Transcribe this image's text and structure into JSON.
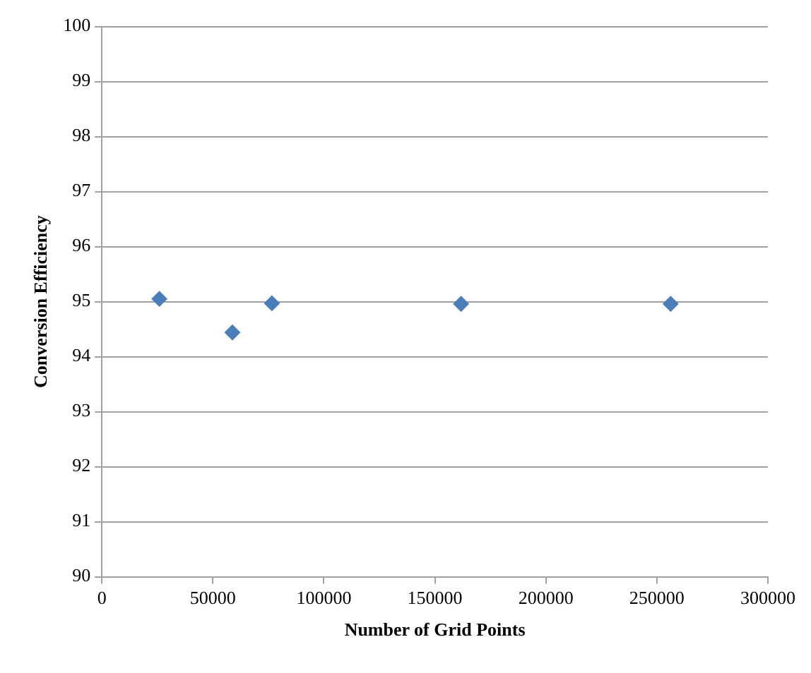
{
  "chart_data": {
    "type": "scatter",
    "xlabel": "Number of Grid Points",
    "ylabel": "Conversion Efficiency",
    "x": [
      25900,
      58800,
      76600,
      161800,
      256200
    ],
    "series": [
      {
        "color": "#4a7ebb",
        "values": [
          95.05,
          94.44,
          94.97,
          94.96,
          94.96
        ]
      }
    ],
    "xlim": [
      0,
      300000
    ],
    "xticks": [
      0,
      50000,
      100000,
      150000,
      200000,
      250000,
      300000
    ],
    "ylim": [
      90,
      100
    ],
    "yticks": [
      90,
      91,
      92,
      93,
      94,
      95,
      96,
      97,
      98,
      99,
      100
    ],
    "grid": "y",
    "legend": false,
    "marker": "diamond"
  }
}
